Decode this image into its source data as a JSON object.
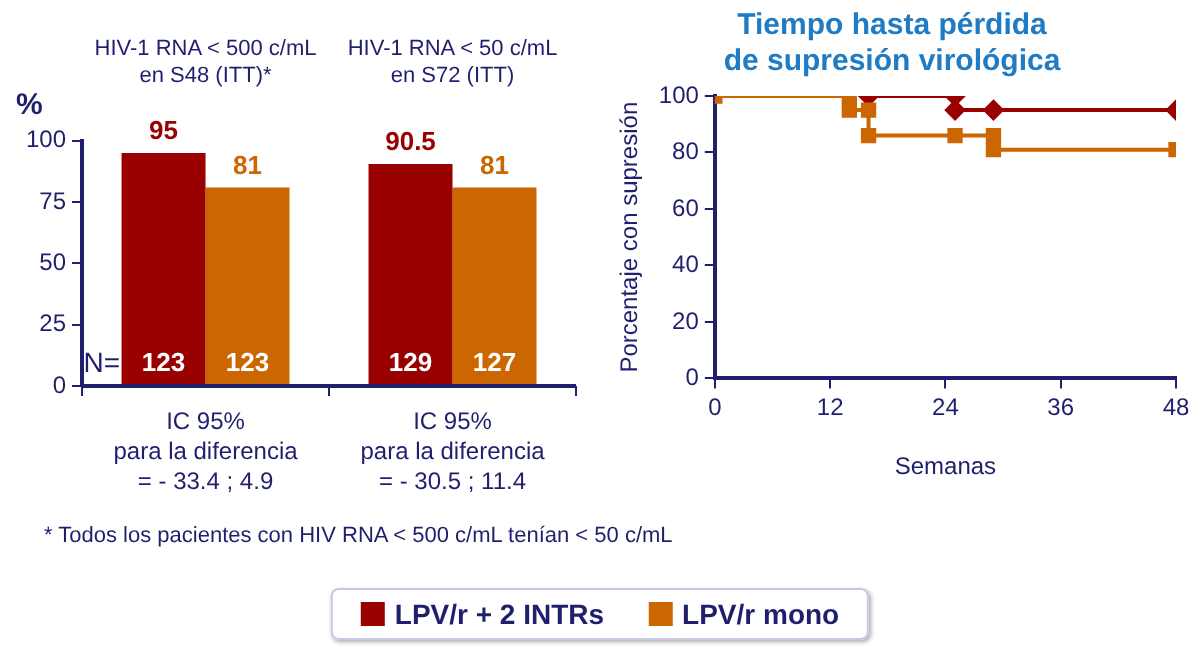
{
  "chart_data": [
    {
      "type": "bar",
      "ylabel": "%",
      "categories": [
        "HIV-1 RNA < 500 c/mL\nen S48 (ITT)*",
        "HIV-1 RNA < 50 c/mL\nen S72 (ITT)"
      ],
      "series": [
        {
          "name": "LPV/r + 2 INTRs",
          "color": "#990000",
          "values": [
            95,
            90.5
          ]
        },
        {
          "name": "LPV/r mono",
          "color": "#cc6600",
          "values": [
            81,
            81
          ]
        }
      ],
      "ylim": [
        0,
        100
      ],
      "yticks": [
        0,
        25,
        50,
        75,
        100
      ],
      "grid": false,
      "data_labels": true,
      "legend": "bottom",
      "annotations": [
        "N=",
        {
          "text": "123",
          "x": "HIV-1 RNA < 500 c/mL\nen S48 (ITT)*",
          "y": 9
        },
        {
          "text": "123",
          "x": "HIV-1 RNA < 500 c/mL\nen S48 (ITT)*",
          "y": 9
        },
        {
          "text": "129",
          "x": "HIV-1 RNA < 50 c/mL\nen S72 (ITT)",
          "y": 9
        },
        {
          "text": "127",
          "x": "HIV-1 RNA < 50 c/mL\nen S72 (ITT)",
          "y": 9
        },
        "IC 95%\npara la diferencia\n= - 33.4 ; 4.9",
        "IC 95%\npara la diferencia\n= - 30.5 ; 11.4",
        "* Todos los pacientes con HIV RNA < 500 c/mL tenían < 50 c/mL"
      ]
    },
    {
      "type": "step",
      "title": "Tiempo hasta pérdida\nde supresión virológica",
      "xlabel": "Semanas",
      "ylabel": "Porcentaje con supresión",
      "series": [
        {
          "name": "LPV/r + 2 INTRs",
          "color": "#990000",
          "marker": "diamond",
          "x": [
            16,
            25,
            25,
            29,
            48
          ],
          "values": [
            100,
            100,
            95,
            95,
            95
          ]
        },
        {
          "name": "LPV/r mono",
          "color": "#cc6600",
          "marker": "square",
          "x": [
            0,
            14,
            14,
            16,
            16,
            25,
            29,
            29,
            48
          ],
          "values": [
            100,
            100,
            95,
            95,
            86,
            86,
            86,
            81,
            81
          ]
        }
      ],
      "xlim": [
        0,
        48
      ],
      "xticks": [
        0,
        12,
        24,
        36,
        48
      ],
      "ylim": [
        0,
        100
      ],
      "yticks": [
        0,
        20,
        40,
        60,
        80,
        100
      ],
      "grid": false,
      "legend": "bottom"
    }
  ]
}
